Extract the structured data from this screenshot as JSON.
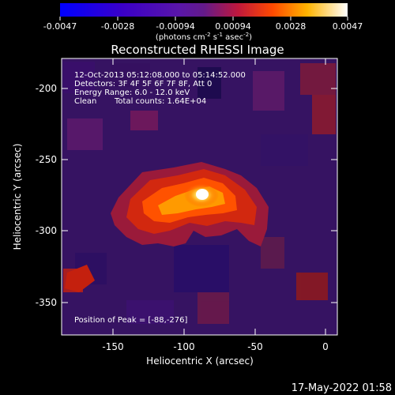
{
  "colorbar": {
    "ticks": [
      "-0.0047",
      "-0.0028",
      "-0.00094",
      "0.00094",
      "0.0028",
      "0.0047"
    ],
    "unit_prefix": "(photons cm",
    "unit_exp1": "-2",
    "unit_mid1": " s",
    "unit_exp2": "-1",
    "unit_mid2": " asec",
    "unit_exp3": "-2",
    "unit_suffix": ")",
    "range": [
      -0.0047,
      0.0047
    ]
  },
  "chart_data": {
    "type": "heatmap",
    "title": "Reconstructed RHESSI Image",
    "xlabel": "Heliocentric X (arcsec)",
    "ylabel": "Heliocentric Y (arcsec)",
    "x_ticks": [
      "-150",
      "-100",
      "-50",
      "0"
    ],
    "y_ticks": [
      "-200",
      "-250",
      "-300",
      "-350"
    ],
    "xlim": [
      -185,
      7
    ],
    "ylim": [
      -375,
      -182
    ],
    "grid": false,
    "peak": {
      "x": -88,
      "y": -276
    },
    "annotations": {
      "time": "12-Oct-2013 05:12:08.000 to 05:14:52.000",
      "detectors": "Detectors: 3F 4F 5F 6F 7F 8F, Att 0",
      "energy": "Energy Range: 6.0 - 12.0 keV",
      "method": "Clean",
      "counts": "Total counts: 1.64E+04",
      "peak_label": "Position of Peak = [-88,-276]"
    }
  },
  "footer": {
    "timestamp": "17-May-2022 01:58"
  }
}
